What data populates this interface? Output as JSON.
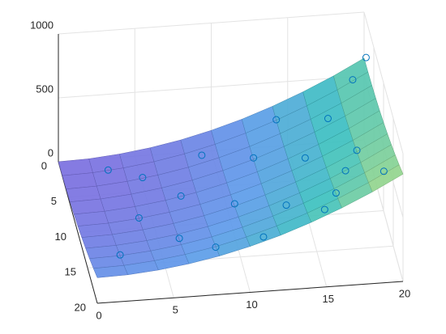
{
  "chart_data": {
    "type": "surface",
    "xlim": [
      0,
      20
    ],
    "ylim": [
      0,
      20
    ],
    "zlim": [
      0,
      1000
    ],
    "xticks": [
      0,
      5,
      10,
      15,
      20
    ],
    "yticks": [
      0,
      5,
      10,
      15,
      20
    ],
    "zticks": [
      0,
      500,
      1000
    ],
    "grid": true,
    "colormap": [
      "#7b6fe0",
      "#5d9bea",
      "#3bc0c0",
      "#8fd490",
      "#f5e46a"
    ],
    "surface": {
      "x": [
        0,
        2,
        4,
        6,
        8,
        10,
        12,
        14,
        16,
        18,
        20
      ],
      "y": [
        0,
        2,
        4,
        6,
        8,
        10,
        12,
        14,
        16,
        18,
        20
      ],
      "z": [
        [
          0,
          6,
          26,
          58,
          102,
          160,
          230,
          314,
          410,
          518,
          640
        ],
        [
          2,
          8,
          28,
          60,
          104,
          162,
          232,
          316,
          412,
          520,
          642
        ],
        [
          8,
          14,
          34,
          66,
          110,
          168,
          238,
          322,
          418,
          526,
          648
        ],
        [
          18,
          24,
          44,
          76,
          120,
          178,
          248,
          332,
          428,
          536,
          658
        ],
        [
          32,
          38,
          58,
          90,
          134,
          192,
          262,
          346,
          442,
          550,
          672
        ],
        [
          50,
          56,
          76,
          108,
          152,
          210,
          280,
          364,
          460,
          568,
          690
        ],
        [
          72,
          78,
          98,
          130,
          174,
          232,
          302,
          386,
          482,
          590,
          712
        ],
        [
          98,
          104,
          124,
          156,
          200,
          258,
          328,
          412,
          508,
          616,
          738
        ],
        [
          128,
          134,
          154,
          186,
          230,
          288,
          358,
          442,
          538,
          646,
          768
        ],
        [
          162,
          168,
          188,
          220,
          264,
          322,
          392,
          476,
          572,
          680,
          802
        ],
        [
          200,
          206,
          226,
          258,
          302,
          360,
          430,
          514,
          610,
          718,
          840
        ]
      ]
    },
    "points": {
      "color": "#0072bd",
      "x": [
        3,
        5,
        7,
        9,
        10,
        12,
        13,
        14,
        15,
        16,
        17,
        18,
        19,
        19,
        20,
        6,
        8,
        11,
        4,
        2,
        15,
        17
      ],
      "y": [
        2,
        4,
        8,
        3,
        12,
        6,
        15,
        2,
        9,
        17,
        5,
        12,
        2,
        18,
        1,
        15,
        18,
        19,
        10,
        16,
        19,
        14
      ],
      "z": [
        20,
        55,
        115,
        140,
        250,
        260,
        380,
        320,
        400,
        560,
        470,
        600,
        590,
        760,
        700,
        180,
        260,
        370,
        80,
        140,
        550,
        560
      ]
    }
  }
}
